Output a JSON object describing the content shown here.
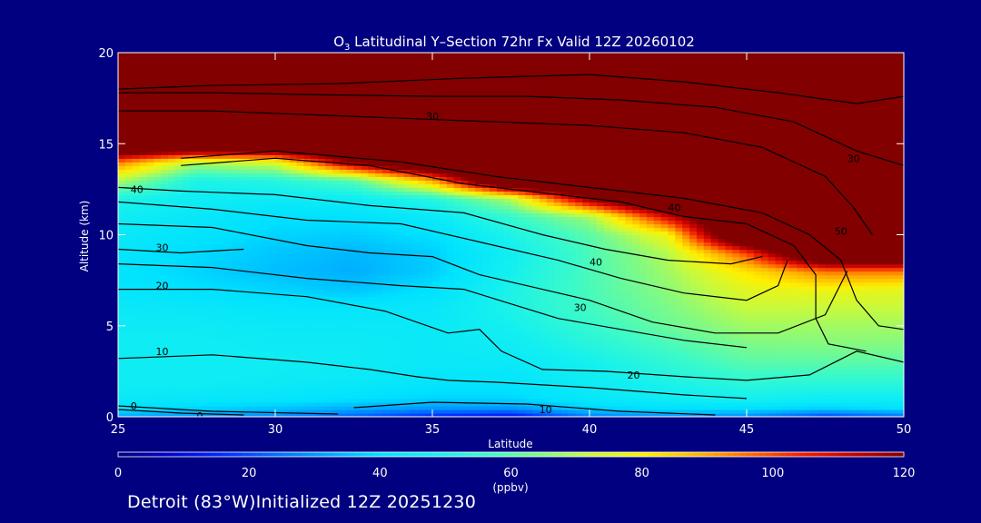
{
  "chart_data": {
    "type": "heatmap",
    "title_prefix": "O",
    "title_sub": "3",
    "title_rest": " Latitudinal Y–Section 72hr  Fx Valid 12Z 20260102",
    "xlabel": "Latitude",
    "ylabel": "Altitude (km)",
    "xlim": [
      25,
      50
    ],
    "ylim": [
      0,
      20
    ],
    "xticks": [
      "25",
      "30",
      "35",
      "40",
      "45",
      "50"
    ],
    "yticks": [
      "0",
      "5",
      "10",
      "15",
      "20"
    ],
    "colorbar": {
      "min": 0,
      "max": 120,
      "ticks": [
        "0",
        "20",
        "40",
        "60",
        "80",
        "100",
        "120"
      ],
      "unit": "(ppbv)"
    },
    "field_description_grid": {
      "x": [
        25,
        27.5,
        30,
        32.5,
        35,
        37.5,
        40,
        42.5,
        45,
        47.5,
        50
      ],
      "y": [
        0,
        0.5,
        1,
        2,
        3,
        4,
        5,
        6,
        7,
        8,
        9,
        10,
        11,
        12,
        13,
        14,
        15,
        16,
        17,
        18,
        19,
        20
      ],
      "z": [
        [
          32,
          30,
          28,
          22,
          14,
          10,
          26,
          30,
          28,
          18,
          24
        ],
        [
          40,
          38,
          36,
          33,
          30,
          30,
          38,
          40,
          40,
          38,
          40
        ],
        [
          44,
          43,
          42,
          40,
          38,
          38,
          43,
          46,
          48,
          46,
          46
        ],
        [
          46,
          46,
          45,
          44,
          42,
          42,
          46,
          50,
          54,
          54,
          54
        ],
        [
          46,
          46,
          46,
          45,
          44,
          44,
          48,
          54,
          60,
          60,
          60
        ],
        [
          46,
          46,
          45,
          45,
          44,
          46,
          52,
          58,
          64,
          65,
          65
        ],
        [
          45,
          45,
          44,
          44,
          44,
          48,
          55,
          62,
          68,
          68,
          68
        ],
        [
          44,
          43,
          42,
          42,
          43,
          50,
          57,
          64,
          72,
          72,
          72
        ],
        [
          42,
          40,
          38,
          36,
          40,
          50,
          58,
          66,
          76,
          78,
          76
        ],
        [
          41,
          38,
          35,
          33,
          37,
          48,
          58,
          68,
          82,
          95,
          95
        ],
        [
          42,
          39,
          36,
          34,
          37,
          47,
          58,
          70,
          100,
          150,
          150
        ],
        [
          44,
          41,
          38,
          37,
          40,
          50,
          60,
          78,
          150,
          150,
          150
        ],
        [
          46,
          43,
          40,
          40,
          44,
          55,
          68,
          110,
          150,
          150,
          150
        ],
        [
          50,
          46,
          45,
          46,
          52,
          70,
          120,
          150,
          150,
          150,
          150
        ],
        [
          70,
          50,
          52,
          60,
          90,
          150,
          150,
          150,
          150,
          150,
          150
        ],
        [
          95,
          70,
          75,
          120,
          150,
          150,
          150,
          150,
          150,
          150,
          150
        ],
        [
          150,
          150,
          150,
          150,
          150,
          150,
          150,
          150,
          150,
          150,
          150
        ],
        [
          150,
          150,
          150,
          150,
          150,
          150,
          150,
          150,
          150,
          150,
          150
        ],
        [
          150,
          150,
          150,
          150,
          150,
          150,
          150,
          150,
          150,
          150,
          150
        ],
        [
          150,
          150,
          150,
          150,
          150,
          150,
          150,
          150,
          150,
          150,
          150
        ],
        [
          150,
          150,
          150,
          150,
          150,
          150,
          150,
          150,
          150,
          150,
          150
        ],
        [
          150,
          150,
          150,
          150,
          150,
          150,
          150,
          150,
          150,
          150,
          150
        ]
      ]
    },
    "contour_lines": [
      {
        "label": "0",
        "label_at": [
          25.4,
          0.6
        ],
        "points": [
          [
            25,
            0.4
          ],
          [
            27,
            0.2
          ],
          [
            29,
            0.1
          ]
        ]
      },
      {
        "label": "0",
        "label_at": [
          27.5,
          0.05
        ],
        "points": [
          [
            25,
            0.6
          ],
          [
            28,
            0.3
          ],
          [
            32,
            0.15
          ]
        ]
      },
      {
        "label": "10",
        "label_at": [
          26.2,
          3.6
        ],
        "points": [
          [
            25,
            3.2
          ],
          [
            28,
            3.4
          ],
          [
            31,
            3.0
          ],
          [
            33,
            2.6
          ],
          [
            34.5,
            2.2
          ],
          [
            35.5,
            2.0
          ],
          [
            37,
            1.9
          ],
          [
            40,
            1.6
          ],
          [
            43,
            1.2
          ],
          [
            45,
            1.0
          ]
        ]
      },
      {
        "label": "10",
        "label_at": [
          38.4,
          0.4
        ],
        "points": [
          [
            32.5,
            0.5
          ],
          [
            35,
            0.8
          ],
          [
            38,
            0.7
          ],
          [
            41,
            0.3
          ],
          [
            44,
            0.1
          ]
        ]
      },
      {
        "label": "20",
        "label_at": [
          41.2,
          2.3
        ],
        "points": [
          [
            25,
            7.0
          ],
          [
            28,
            7.0
          ],
          [
            31,
            6.6
          ],
          [
            33.5,
            5.8
          ],
          [
            35.5,
            4.6
          ],
          [
            36.5,
            4.8
          ],
          [
            37.2,
            3.6
          ],
          [
            38.5,
            2.6
          ],
          [
            40.5,
            2.5
          ],
          [
            43,
            2.2
          ],
          [
            45,
            2.0
          ],
          [
            47,
            2.3
          ],
          [
            48.5,
            3.6
          ],
          [
            50,
            3.0
          ]
        ]
      },
      {
        "label": "20",
        "label_at": [
          26.2,
          7.2
        ],
        "points": [
          [
            25,
            8.4
          ],
          [
            28,
            8.2
          ],
          [
            31,
            7.6
          ],
          [
            34,
            7.2
          ],
          [
            36,
            7.0
          ],
          [
            37.5,
            6.2
          ],
          [
            39,
            5.4
          ],
          [
            41,
            4.8
          ],
          [
            43,
            4.2
          ],
          [
            45,
            3.8
          ]
        ]
      },
      {
        "label": "30",
        "label_at": [
          39.5,
          6.0
        ],
        "points": [
          [
            25,
            10.6
          ],
          [
            28,
            10.4
          ],
          [
            31,
            9.4
          ],
          [
            33,
            9.0
          ],
          [
            35,
            8.8
          ],
          [
            36.5,
            7.8
          ],
          [
            38,
            7.2
          ],
          [
            40,
            6.4
          ],
          [
            42,
            5.2
          ],
          [
            44,
            4.6
          ],
          [
            46,
            4.6
          ],
          [
            47.5,
            5.6
          ],
          [
            48.2,
            8.0
          ]
        ]
      },
      {
        "label": "30",
        "label_at": [
          26.2,
          9.3
        ],
        "points": [
          [
            25,
            9.2
          ],
          [
            27,
            9.0
          ],
          [
            29,
            9.2
          ]
        ]
      },
      {
        "label": "40",
        "label_at": [
          40.0,
          8.5
        ],
        "points": [
          [
            25,
            11.8
          ],
          [
            28,
            11.4
          ],
          [
            31,
            10.8
          ],
          [
            34,
            10.6
          ],
          [
            37,
            9.4
          ],
          [
            39,
            8.6
          ],
          [
            41,
            7.6
          ],
          [
            43,
            6.8
          ],
          [
            45,
            6.4
          ],
          [
            46,
            7.2
          ],
          [
            46.3,
            8.6
          ]
        ]
      },
      {
        "label": "40",
        "label_at": [
          25.4,
          12.5
        ],
        "points": [
          [
            25,
            12.6
          ],
          [
            27,
            12.4
          ],
          [
            30,
            12.2
          ],
          [
            33,
            11.6
          ],
          [
            36,
            11.2
          ],
          [
            38.5,
            10.0
          ],
          [
            40.5,
            9.2
          ],
          [
            42.5,
            8.6
          ],
          [
            44.5,
            8.4
          ],
          [
            45.5,
            8.8
          ]
        ]
      },
      {
        "label": "40",
        "label_at": [
          42.5,
          11.5
        ],
        "points": [
          [
            27,
            13.8
          ],
          [
            30,
            14.2
          ],
          [
            33,
            13.8
          ],
          [
            36,
            12.8
          ],
          [
            38,
            12.4
          ],
          [
            41,
            11.8
          ],
          [
            43,
            11.0
          ],
          [
            45,
            10.6
          ],
          [
            46.5,
            9.4
          ],
          [
            47.2,
            7.8
          ],
          [
            47.2,
            5.4
          ],
          [
            47.6,
            4.0
          ],
          [
            48.8,
            3.6
          ]
        ]
      },
      {
        "label": "50",
        "label_at": [
          47.8,
          10.2
        ],
        "points": [
          [
            27,
            14.2
          ],
          [
            30,
            14.6
          ],
          [
            34,
            14.0
          ],
          [
            37,
            13.2
          ],
          [
            40,
            12.6
          ],
          [
            43,
            12.0
          ],
          [
            45.5,
            11.2
          ],
          [
            47,
            10.0
          ],
          [
            48,
            8.6
          ],
          [
            48.5,
            6.4
          ],
          [
            49.2,
            5.0
          ],
          [
            50,
            4.8
          ]
        ]
      },
      {
        "label": "30",
        "label_at": [
          34.8,
          16.5
        ],
        "points": [
          [
            25,
            16.8
          ],
          [
            28,
            16.8
          ],
          [
            31,
            16.6
          ],
          [
            34,
            16.4
          ],
          [
            37,
            16.2
          ],
          [
            40,
            16.0
          ],
          [
            43,
            15.6
          ],
          [
            45.5,
            14.8
          ],
          [
            47.5,
            13.2
          ],
          [
            48.4,
            11.5
          ],
          [
            49,
            10.0
          ]
        ]
      },
      {
        "label": "30",
        "label_at": [
          48.2,
          14.2
        ],
        "points": [
          [
            25,
            17.8
          ],
          [
            28,
            17.8
          ],
          [
            31,
            17.7
          ],
          [
            35,
            17.6
          ],
          [
            38,
            17.6
          ],
          [
            41,
            17.4
          ],
          [
            44,
            17.0
          ],
          [
            46.5,
            16.2
          ],
          [
            48.5,
            14.6
          ],
          [
            50,
            13.8
          ]
        ]
      },
      {
        "label": "",
        "label_at": [
          0,
          0
        ],
        "points": [
          [
            25,
            18.0
          ],
          [
            28,
            18.2
          ],
          [
            32,
            18.3
          ],
          [
            36,
            18.6
          ],
          [
            40,
            18.8
          ],
          [
            43,
            18.4
          ],
          [
            46,
            17.8
          ],
          [
            48.5,
            17.2
          ],
          [
            50,
            17.6
          ]
        ]
      }
    ]
  },
  "footer": {
    "text": "Detroit (83°W)Initialized 12Z 20251230"
  }
}
